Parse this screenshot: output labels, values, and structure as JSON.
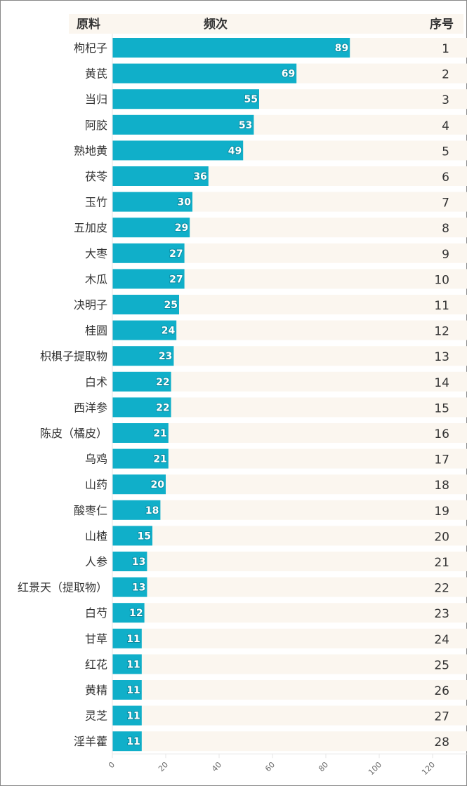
{
  "header": {
    "material": "原料",
    "frequency": "频次",
    "index": "序号"
  },
  "colors": {
    "bar": "#10afc9",
    "row_bg": "#fbf6ef",
    "label": "#333333"
  },
  "chart_data": {
    "type": "bar",
    "orientation": "horizontal",
    "categories": [
      "枸杞子",
      "黄芪",
      "当归",
      "阿胶",
      "熟地黄",
      "茯苓",
      "玉竹",
      "五加皮",
      "大枣",
      "木瓜",
      "决明子",
      "桂圆",
      "枳椇子提取物",
      "白术",
      "西洋参",
      "陈皮（橘皮）",
      "乌鸡",
      "山药",
      "酸枣仁",
      "山楂",
      "人参",
      "红景天（提取物）",
      "白芍",
      "甘草",
      "红花",
      "黄精",
      "灵芝",
      "淫羊藿"
    ],
    "values": [
      89,
      69,
      55,
      53,
      49,
      36,
      30,
      29,
      27,
      27,
      25,
      24,
      23,
      22,
      22,
      21,
      21,
      20,
      18,
      15,
      13,
      13,
      12,
      11,
      11,
      11,
      11,
      11
    ],
    "ranks": [
      1,
      2,
      3,
      4,
      5,
      6,
      7,
      8,
      9,
      10,
      11,
      12,
      13,
      14,
      15,
      16,
      17,
      18,
      19,
      20,
      21,
      22,
      23,
      24,
      25,
      26,
      27,
      28
    ],
    "xlim": [
      0,
      120
    ],
    "xticks": [
      "0",
      "20",
      "40",
      "60",
      "80",
      "100",
      "120"
    ],
    "grid": false
  }
}
